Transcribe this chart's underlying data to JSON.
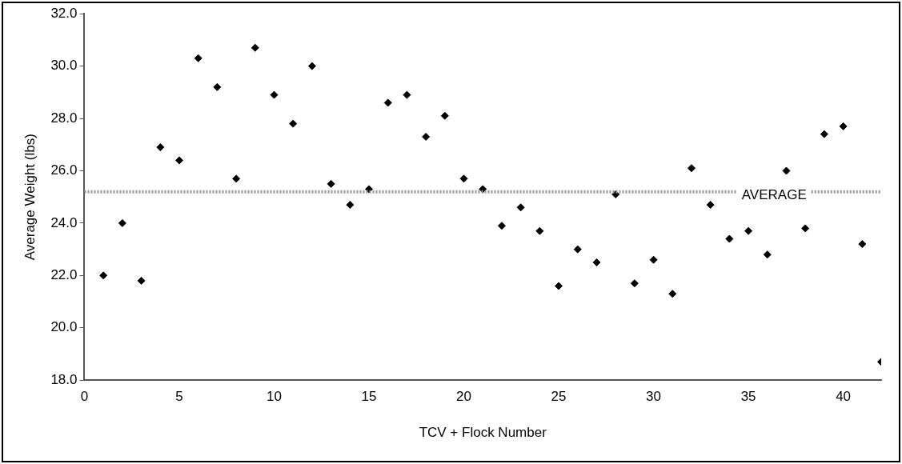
{
  "chart_data": {
    "type": "scatter",
    "xlabel": "TCV + Flock Number",
    "ylabel": "Average Weight (lbs)",
    "x": [
      1,
      2,
      3,
      4,
      5,
      6,
      7,
      8,
      9,
      10,
      11,
      12,
      13,
      14,
      15,
      16,
      17,
      18,
      19,
      20,
      21,
      22,
      23,
      24,
      25,
      26,
      27,
      28,
      29,
      30,
      31,
      32,
      33,
      34,
      35,
      36,
      37,
      38,
      39,
      40,
      41,
      42
    ],
    "series": [
      {
        "color": "#000000",
        "values": [
          22.0,
          24.0,
          21.8,
          26.9,
          26.4,
          30.3,
          29.2,
          25.7,
          30.7,
          28.9,
          27.8,
          30.0,
          25.5,
          24.7,
          25.3,
          28.6,
          28.9,
          27.3,
          28.1,
          25.7,
          25.3,
          23.9,
          24.6,
          23.7,
          21.6,
          23.0,
          22.5,
          25.1,
          21.7,
          22.6,
          21.3,
          26.1,
          24.7,
          23.4,
          23.7,
          22.8,
          26.0,
          23.8,
          27.4,
          27.7,
          23.2,
          18.7
        ]
      }
    ],
    "xlim": [
      0,
      42
    ],
    "xticks": [
      0,
      5,
      10,
      15,
      20,
      25,
      30,
      35,
      40
    ],
    "ylim": [
      18,
      32
    ],
    "yticks": [
      {
        "value": 18,
        "label": "18.0"
      },
      {
        "value": 20,
        "label": "20.0"
      },
      {
        "value": 22,
        "label": "22.0"
      },
      {
        "value": 24,
        "label": "24.0"
      },
      {
        "value": 26,
        "label": "26.0"
      },
      {
        "value": 28,
        "label": "28.0"
      },
      {
        "value": 30,
        "label": "30.0"
      },
      {
        "value": 32,
        "label": "32.0"
      }
    ],
    "ref_lines": [
      {
        "axis": "y",
        "value": 25.2,
        "label": "AVERAGE",
        "color": "#999999",
        "line_style": "dotted"
      }
    ],
    "marker": "diamond",
    "grid": false,
    "legend": false
  }
}
